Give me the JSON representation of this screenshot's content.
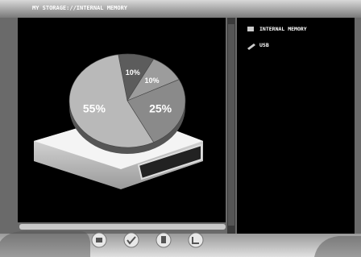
{
  "header": {
    "title": "MY STORAGE://INTERNAL MEMORY"
  },
  "pie": {
    "values": [
      10,
      10,
      25,
      55
    ],
    "value_labels": [
      "10%",
      "10%",
      "25%",
      "55%"
    ],
    "colors": [
      "#5c5c5c",
      "#9c9c9c",
      "#8a8a8a",
      "#b9b9b9"
    ]
  },
  "sidebar": {
    "items": [
      "INTERNAL MEMORY",
      "USB"
    ]
  }
}
